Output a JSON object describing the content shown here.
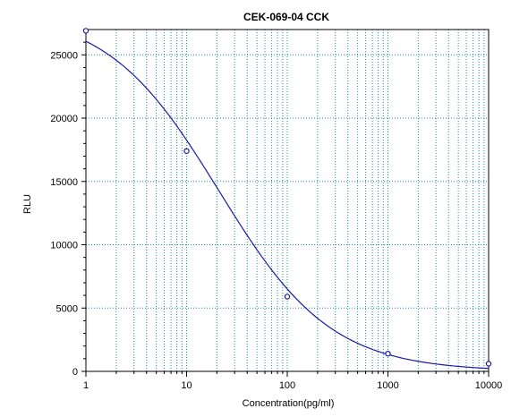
{
  "chart_data": {
    "type": "scatter",
    "title": "CEK-069-04 CCK",
    "xlabel": "Concentration(pg/ml)",
    "ylabel": "RLU",
    "x_scale": "log",
    "xlim": [
      1,
      10000
    ],
    "ylim": [
      0,
      27000
    ],
    "x_ticks": [
      1,
      10,
      100,
      1000,
      10000
    ],
    "x_tick_labels": [
      "1",
      "10",
      "100",
      "1000",
      "10000"
    ],
    "y_ticks": [
      0,
      5000,
      10000,
      15000,
      20000,
      25000
    ],
    "y_tick_labels": [
      "0",
      "5000",
      "10000",
      "15000",
      "20000",
      "25000"
    ],
    "grid": true,
    "colors": {
      "curve": "#1a1aa8",
      "grid": "#1a8fa8",
      "axis": "#000000"
    },
    "series": [
      {
        "points": [
          {
            "x": 1,
            "y": 26900
          },
          {
            "x": 10,
            "y": 17400
          },
          {
            "x": 100,
            "y": 5900
          },
          {
            "x": 1000,
            "y": 1400
          },
          {
            "x": 10000,
            "y": 600
          }
        ]
      }
    ],
    "fit_curve": {
      "type": "4PL",
      "top": 28500,
      "bottom": 0,
      "ec50": 21,
      "slope": 0.78
    }
  }
}
